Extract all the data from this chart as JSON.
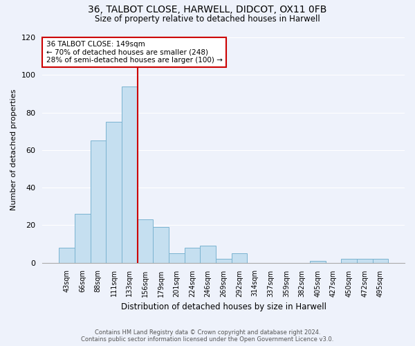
{
  "title": "36, TALBOT CLOSE, HARWELL, DIDCOT, OX11 0FB",
  "subtitle": "Size of property relative to detached houses in Harwell",
  "xlabel": "Distribution of detached houses by size in Harwell",
  "ylabel": "Number of detached properties",
  "bar_labels": [
    "43sqm",
    "66sqm",
    "88sqm",
    "111sqm",
    "133sqm",
    "156sqm",
    "179sqm",
    "201sqm",
    "224sqm",
    "246sqm",
    "269sqm",
    "292sqm",
    "314sqm",
    "337sqm",
    "359sqm",
    "382sqm",
    "405sqm",
    "427sqm",
    "450sqm",
    "472sqm",
    "495sqm"
  ],
  "bar_heights": [
    8,
    26,
    65,
    75,
    94,
    23,
    19,
    5,
    8,
    9,
    2,
    5,
    0,
    0,
    0,
    0,
    1,
    0,
    2,
    2,
    2
  ],
  "bar_color": "#c5dff0",
  "bar_edge_color": "#7ab3d0",
  "vline_color": "#cc0000",
  "vline_x_index": 4.5,
  "ylim": [
    0,
    120
  ],
  "yticks": [
    0,
    20,
    40,
    60,
    80,
    100,
    120
  ],
  "annotation_text": "36 TALBOT CLOSE: 149sqm\n← 70% of detached houses are smaller (248)\n28% of semi-detached houses are larger (100) →",
  "annotation_box_color": "#ffffff",
  "annotation_box_edge": "#cc0000",
  "footer_line1": "Contains HM Land Registry data © Crown copyright and database right 2024.",
  "footer_line2": "Contains public sector information licensed under the Open Government Licence v3.0.",
  "bg_color": "#eef2fb",
  "plot_bg_color": "#eef2fb",
  "grid_color": "#ffffff",
  "spine_color": "#aaaaaa"
}
